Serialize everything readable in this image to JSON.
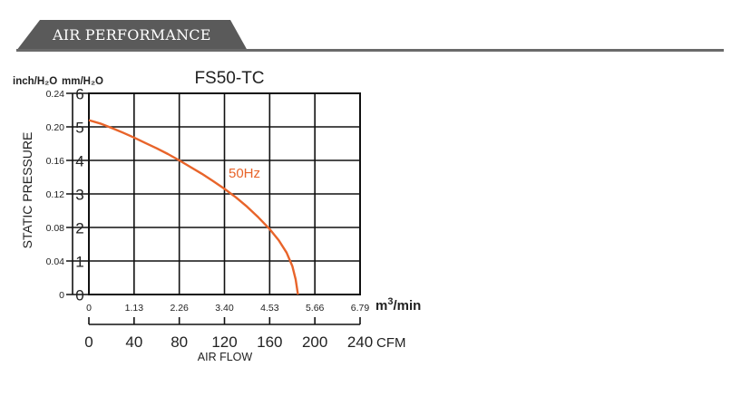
{
  "header": {
    "title": "AIR PERFORMANCE"
  },
  "colors": {
    "accent": "#5a5a5a",
    "curve": "#e8642a"
  },
  "chart_data": {
    "type": "line",
    "title": "FS50-TC",
    "ylabel": "STATIC PRESSURE",
    "xlabel": "AIR FLOW",
    "y_unit_primary": "mm/H₂O",
    "y_unit_secondary": "inch/H₂O",
    "y_ticks_primary": [
      "0",
      "1",
      "2",
      "3",
      "4",
      "5",
      "6"
    ],
    "y_ticks_secondary": [
      "0",
      "0.04",
      "0.08",
      "0.12",
      "0.16",
      "0.20",
      "0.24"
    ],
    "x_ticks_m3": [
      "0",
      "1.13",
      "2.26",
      "3.40",
      "4.53",
      "5.66",
      "6.79"
    ],
    "x_unit_m3": "m³/min",
    "x_ticks_cfm": [
      "0",
      "40",
      "80",
      "120",
      "160",
      "200",
      "240"
    ],
    "x_unit_cfm": "CFM",
    "xlim": [
      0,
      240
    ],
    "ylim": [
      0,
      6
    ],
    "grid": true,
    "series": [
      {
        "name": "50Hz",
        "x": [
          0,
          10,
          20,
          30,
          40,
          50,
          60,
          70,
          80,
          90,
          100,
          110,
          120,
          130,
          140,
          150,
          160,
          168,
          175,
          180,
          183,
          185
        ],
        "y": [
          5.2,
          5.1,
          4.97,
          4.83,
          4.68,
          4.52,
          4.36,
          4.19,
          4.0,
          3.8,
          3.6,
          3.38,
          3.15,
          2.9,
          2.62,
          2.3,
          1.95,
          1.62,
          1.25,
          0.85,
          0.45,
          0.0
        ]
      }
    ]
  }
}
